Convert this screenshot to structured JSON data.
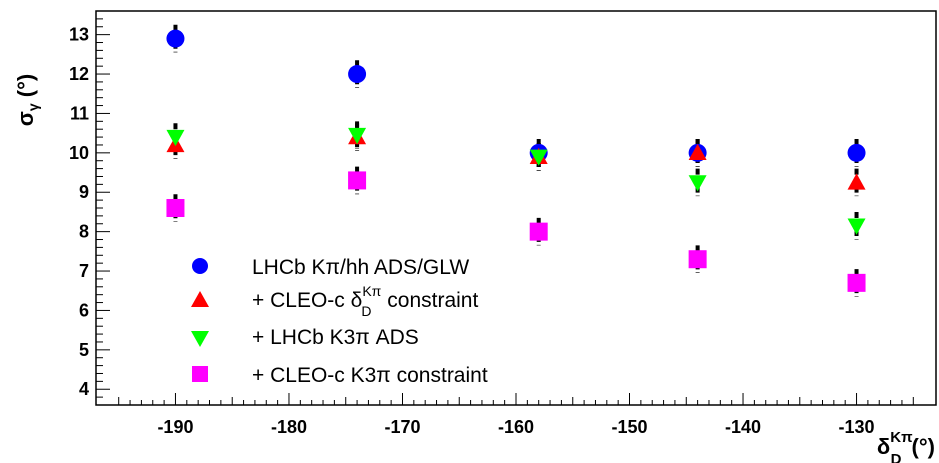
{
  "chart_data": {
    "type": "scatter",
    "ylabel": "σ",
    "ylabel_sub": "γ",
    "ylabel_unit": "(°)",
    "xlabel": "δ",
    "xlabel_sup": "Kπ",
    "xlabel_sub": "D",
    "xlabel_unit": "(°)",
    "xlim": [
      -197,
      -123
    ],
    "ylim": [
      3.6,
      13.6
    ],
    "xticks": [
      -190,
      -180,
      -170,
      -160,
      -150,
      -140,
      -130
    ],
    "yticks": [
      4,
      5,
      6,
      7,
      8,
      9,
      10,
      11,
      12,
      13
    ],
    "legend_position": "bottom-left",
    "series": [
      {
        "name": "LHCb Kπ/hh ADS/GLW",
        "marker": "circle",
        "color": "#0000ff",
        "x": [
          -190,
          -174,
          -158,
          -144,
          -130
        ],
        "y": [
          12.9,
          12.0,
          10.0,
          10.0,
          10.0
        ],
        "err": [
          0.35,
          0.35,
          0.35,
          0.35,
          0.35
        ]
      },
      {
        "name_parts": [
          "+ CLEO-c δ",
          "Kπ",
          "D",
          " constraint"
        ],
        "marker": "triangle-up",
        "color": "#ff0000",
        "x": [
          -190,
          -174,
          -158,
          -144,
          -130
        ],
        "y": [
          10.2,
          10.4,
          9.9,
          10.0,
          9.25
        ],
        "err": [
          0.35,
          0.35,
          0.35,
          0.35,
          0.35
        ]
      },
      {
        "name": "+ LHCb K3π ADS",
        "marker": "triangle-down",
        "color": "#00ff00",
        "x": [
          -190,
          -174,
          -158,
          -144,
          -130
        ],
        "y": [
          10.4,
          10.45,
          9.9,
          9.25,
          8.15
        ],
        "err": [
          0.35,
          0.35,
          0.35,
          0.35,
          0.35
        ]
      },
      {
        "name": "+ CLEO-c K3π constraint",
        "marker": "square",
        "color": "#ff00ff",
        "x": [
          -190,
          -174,
          -158,
          -144,
          -130
        ],
        "y": [
          8.6,
          9.3,
          8.0,
          7.3,
          6.7
        ],
        "err": [
          0.35,
          0.35,
          0.35,
          0.35,
          0.35
        ]
      }
    ]
  }
}
